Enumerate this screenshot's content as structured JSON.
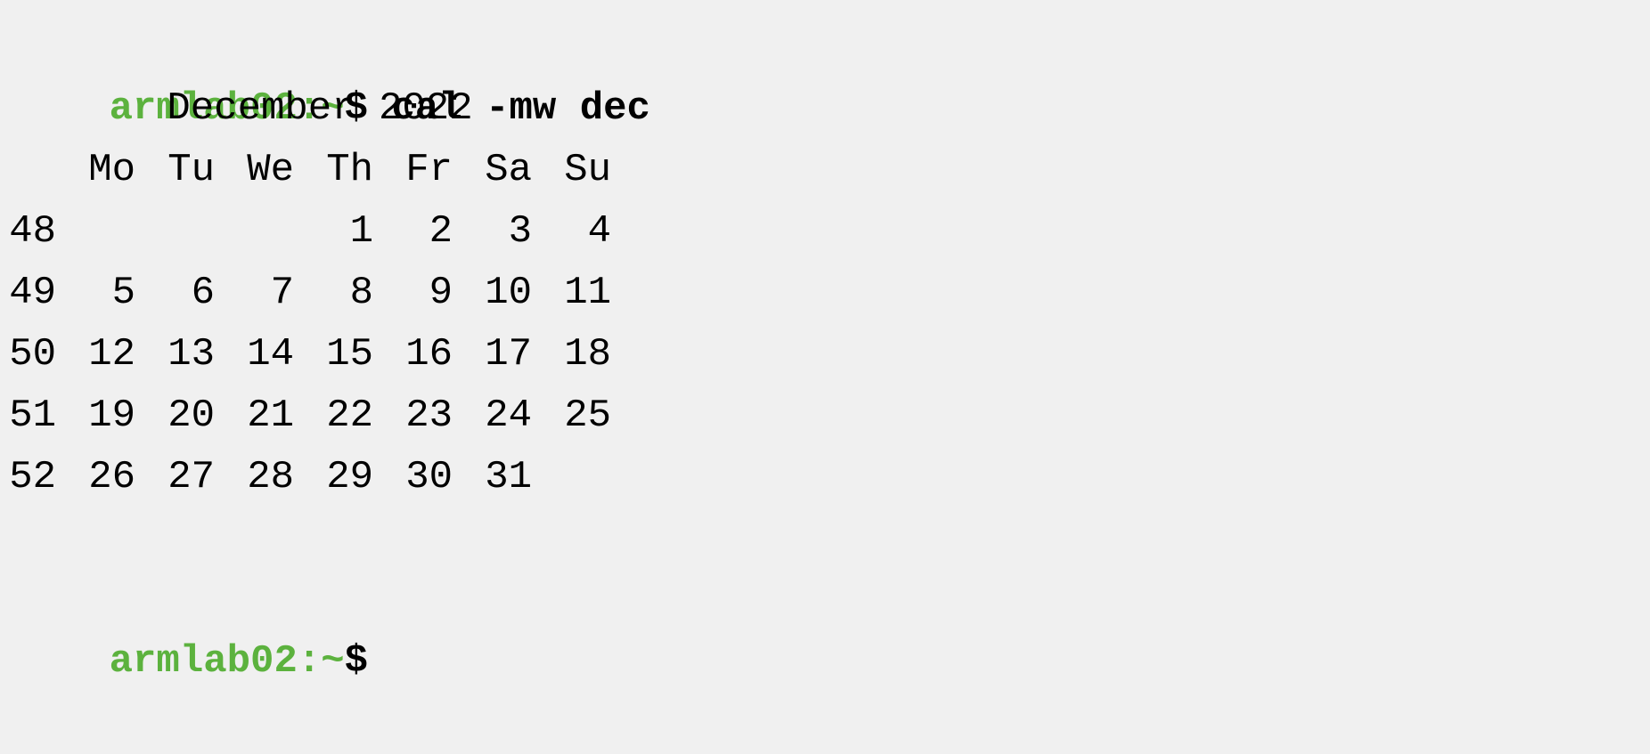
{
  "prompt": {
    "host": "armlab02:~",
    "sign": "$",
    "command": " cal -mw dec"
  },
  "calendar": {
    "title": "December 2022",
    "weekdays": [
      "Mo",
      "Tu",
      "We",
      "Th",
      "Fr",
      "Sa",
      "Su"
    ],
    "weeks": [
      {
        "week": "48",
        "days": [
          "",
          "",
          "",
          "1",
          "2",
          "3",
          "4"
        ]
      },
      {
        "week": "49",
        "days": [
          "5",
          "6",
          "7",
          "8",
          "9",
          "10",
          "11"
        ]
      },
      {
        "week": "50",
        "days": [
          "12",
          "13",
          "14",
          "15",
          "16",
          "17",
          "18"
        ]
      },
      {
        "week": "51",
        "days": [
          "19",
          "20",
          "21",
          "22",
          "23",
          "24",
          "25"
        ]
      },
      {
        "week": "52",
        "days": [
          "26",
          "27",
          "28",
          "29",
          "30",
          "31",
          ""
        ]
      }
    ]
  },
  "prompt2": {
    "host": "armlab02:~",
    "sign": "$"
  },
  "colors": {
    "background": "#f0f0f0",
    "prompt_host": "#5cb23e",
    "text": "#000000"
  }
}
